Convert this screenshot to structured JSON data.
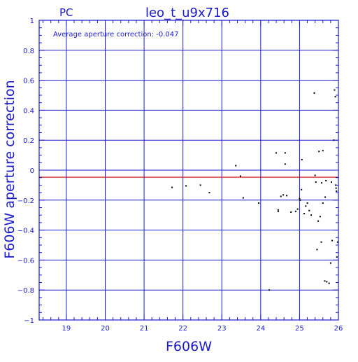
{
  "header": {
    "left_label": "PC",
    "title": "leo_t_u9x716"
  },
  "annotation": "Average aperture correction: -0.047",
  "colors": {
    "axis": "#1a1acc",
    "grid": "#1a1acc",
    "reference_line": "#cc0000",
    "points": "#000000",
    "background": "#ffffff"
  },
  "chart_data": {
    "type": "scatter",
    "title": "leo_t_u9x716",
    "xlabel": "F606W",
    "ylabel": "F606W aperture correction",
    "xlim": [
      18.3,
      26.0
    ],
    "ylim": [
      -1.0,
      1.0
    ],
    "x_ticks": [
      19,
      20,
      21,
      22,
      23,
      24,
      25,
      26
    ],
    "y_ticks": [
      -1,
      -0.8,
      -0.6,
      -0.4,
      -0.2,
      0,
      0.2,
      0.4,
      0.6,
      0.8,
      1
    ],
    "x_tick_labels": [
      "19",
      "20",
      "21",
      "22",
      "23",
      "24",
      "25",
      "26"
    ],
    "y_tick_labels": [
      "−1",
      "−0.8",
      "−0.6",
      "−0.4",
      "−0.2",
      "0",
      "0.2",
      "0.4",
      "0.6",
      "0.8",
      "1"
    ],
    "grid": true,
    "reference_line_y": -0.047,
    "points": [
      [
        21.72,
        -0.115
      ],
      [
        22.08,
        -0.105
      ],
      [
        22.45,
        -0.1
      ],
      [
        22.68,
        -0.15
      ],
      [
        23.36,
        0.03
      ],
      [
        23.48,
        -0.04
      ],
      [
        23.55,
        -0.185
      ],
      [
        23.95,
        -0.22
      ],
      [
        24.22,
        -0.8
      ],
      [
        24.4,
        0.115
      ],
      [
        24.45,
        -0.265
      ],
      [
        24.45,
        -0.275
      ],
      [
        24.52,
        -0.175
      ],
      [
        24.58,
        -0.165
      ],
      [
        24.63,
        0.115
      ],
      [
        24.63,
        0.04
      ],
      [
        24.67,
        -0.17
      ],
      [
        24.78,
        -0.28
      ],
      [
        24.9,
        -0.275
      ],
      [
        24.95,
        -0.26
      ],
      [
        25.0,
        -0.19
      ],
      [
        25.02,
        -0.2
      ],
      [
        25.05,
        -0.13
      ],
      [
        25.06,
        0.07
      ],
      [
        25.12,
        -0.29
      ],
      [
        25.16,
        -0.24
      ],
      [
        25.2,
        -0.22
      ],
      [
        25.25,
        -0.27
      ],
      [
        25.3,
        -0.3
      ],
      [
        25.38,
        0.515
      ],
      [
        25.4,
        -0.035
      ],
      [
        25.42,
        -0.08
      ],
      [
        25.45,
        -0.53
      ],
      [
        25.48,
        -0.34
      ],
      [
        25.5,
        0.125
      ],
      [
        25.53,
        -0.31
      ],
      [
        25.56,
        -0.48
      ],
      [
        25.57,
        -0.085
      ],
      [
        25.6,
        -0.22
      ],
      [
        25.6,
        0.13
      ],
      [
        25.65,
        -0.74
      ],
      [
        25.66,
        -0.18
      ],
      [
        25.68,
        -0.07
      ],
      [
        25.7,
        -0.745
      ],
      [
        25.76,
        -0.755
      ],
      [
        25.8,
        -0.62
      ],
      [
        25.82,
        -0.08
      ],
      [
        25.84,
        -0.47
      ],
      [
        25.88,
        0.2
      ],
      [
        25.9,
        0.535
      ],
      [
        25.92,
        0.49
      ],
      [
        25.93,
        -0.1
      ],
      [
        25.94,
        -0.12
      ],
      [
        25.95,
        -0.14
      ],
      [
        25.96,
        -0.58
      ],
      [
        25.98,
        -0.48
      ]
    ]
  }
}
